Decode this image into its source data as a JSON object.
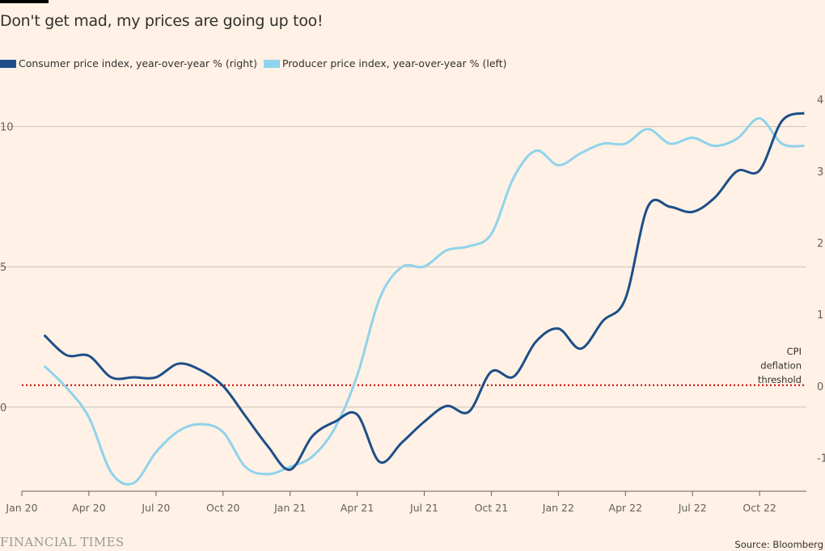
{
  "title": "Don't get mad, my prices are going up too!",
  "footer": {
    "brand": "FINANCIAL TIMES",
    "source": "Source: Bloomberg"
  },
  "chart_data": {
    "type": "line",
    "title": "Don't get mad, my prices are going up too!",
    "x_tick_labels": [
      "Jan 20",
      "Apr 20",
      "Jul 20",
      "Oct 20",
      "Jan 21",
      "Apr 21",
      "Jul 21",
      "Oct 21",
      "Jan 22",
      "Apr 22",
      "Jul 22",
      "Oct 22"
    ],
    "x": [
      "2020-02",
      "2020-03",
      "2020-04",
      "2020-05",
      "2020-06",
      "2020-07",
      "2020-08",
      "2020-09",
      "2020-10",
      "2020-11",
      "2020-12",
      "2021-01",
      "2021-02",
      "2021-03",
      "2021-04",
      "2021-05",
      "2021-06",
      "2021-07",
      "2021-08",
      "2021-09",
      "2021-10",
      "2021-11",
      "2021-12",
      "2022-01",
      "2022-02",
      "2022-03",
      "2022-04",
      "2022-05",
      "2022-06",
      "2022-07",
      "2022-08",
      "2022-09",
      "2022-10",
      "2022-11",
      "2022-12"
    ],
    "left_axis": {
      "ticks": [
        0,
        5,
        10
      ],
      "range": [
        -3,
        11.4
      ]
    },
    "right_axis": {
      "ticks": [
        -1,
        0,
        1,
        2,
        3,
        4
      ],
      "range": [
        -1.48,
        4.16
      ]
    },
    "grid": true,
    "legend_placement": "top-left",
    "series": [
      {
        "name": "Consumer price index, year-over-year % (right)",
        "axis": "right",
        "color": "#1d4e89",
        "values": [
          0.7,
          0.42,
          0.41,
          0.11,
          0.11,
          0.11,
          0.3,
          0.21,
          -0.01,
          -0.43,
          -0.85,
          -1.18,
          -0.71,
          -0.51,
          -0.41,
          -1.07,
          -0.8,
          -0.51,
          -0.29,
          -0.37,
          0.19,
          0.12,
          0.61,
          0.79,
          0.51,
          0.9,
          1.21,
          2.49,
          2.49,
          2.42,
          2.62,
          2.99,
          3.0,
          3.69,
          3.8
        ]
      },
      {
        "name": "Producer price index, year-over-year % (left)",
        "axis": "left",
        "color": "#8fd3ec",
        "values": [
          1.47,
          0.69,
          -0.37,
          -2.33,
          -2.71,
          -1.61,
          -0.86,
          -0.61,
          -0.89,
          -2.13,
          -2.39,
          -2.13,
          -1.76,
          -0.75,
          1.12,
          3.86,
          4.99,
          5.01,
          5.59,
          5.73,
          6.17,
          8.18,
          9.14,
          8.62,
          9.05,
          9.39,
          9.39,
          9.91,
          9.39,
          9.6,
          9.31,
          9.57,
          10.29,
          9.39,
          9.31
        ]
      }
    ],
    "annotations": [
      {
        "text": [
          "CPI",
          "deflation",
          "threshold"
        ],
        "right_value": 0,
        "color": "#cc0000",
        "style": "dotted"
      }
    ]
  }
}
